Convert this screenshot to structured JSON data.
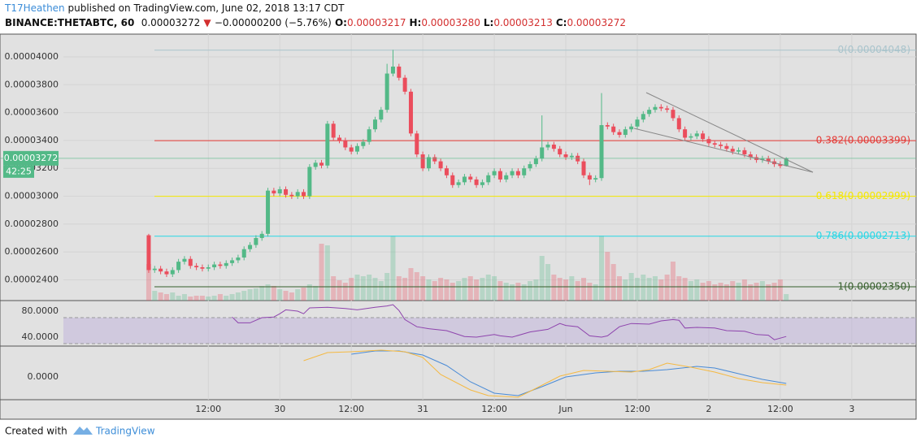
{
  "header": {
    "author": "T17Heathen",
    "published": "published on TradingView.com, June 02, 2018 13:17 CDT",
    "symbol": "BINANCE:THETABTC, 60",
    "last": "0.00003272",
    "arrow": "▼",
    "change": "−0.00000200 (−5.76%)",
    "ohlc": [
      {
        "key": "O:",
        "value": "0.00003217"
      },
      {
        "key": "H:",
        "value": "0.00003280"
      },
      {
        "key": "L:",
        "value": "0.00003213"
      },
      {
        "key": "C:",
        "value": "0.00003272"
      }
    ]
  },
  "footer": {
    "created": "Created with",
    "brand": "TradingView"
  },
  "chart_data": [
    {
      "type": "candlestick",
      "up_color": "#53b987",
      "down_color": "#eb4d5c",
      "grid": true,
      "xlim": [
        -14.32,
        128.8
      ],
      "xticks": [
        {
          "value": 10,
          "label": "12:00"
        },
        {
          "value": 22,
          "label": "30"
        },
        {
          "value": 34,
          "label": "12:00"
        },
        {
          "value": 46,
          "label": "31"
        },
        {
          "value": 58,
          "label": "12:00"
        },
        {
          "value": 70,
          "label": "Jun"
        },
        {
          "value": 82,
          "label": "12:00"
        },
        {
          "value": 94,
          "label": "2"
        },
        {
          "value": 106,
          "label": "12:00"
        },
        {
          "value": 118,
          "label": "3"
        }
      ],
      "ylim": [
        2.251e-05,
        4.163e-05
      ],
      "yticks": [
        {
          "value": 2.4e-05,
          "label": "0.00002400"
        },
        {
          "value": 2.6e-05,
          "label": "0.00002600"
        },
        {
          "value": 2.8e-05,
          "label": "0.00002800"
        },
        {
          "value": 3e-05,
          "label": "0.00003000"
        },
        {
          "value": 3.2e-05,
          "label": "0.00003200"
        },
        {
          "value": 3.4e-05,
          "label": "0.00003400"
        },
        {
          "value": 3.6e-05,
          "label": "0.00003600"
        },
        {
          "value": 3.8e-05,
          "label": "0.00003800"
        },
        {
          "value": 4e-05,
          "label": "0.00004000"
        }
      ],
      "last_price": 3.272e-05,
      "countdown": "42:25",
      "fib_levels": [
        {
          "label": "0(0.00004048)",
          "value": 4.048e-05,
          "color": "#a9c4cc"
        },
        {
          "label": "0.382(0.00003399)",
          "value": 3.399e-05,
          "color": "#e53935"
        },
        {
          "label": "0.618(0.00002999)",
          "value": 2.999e-05,
          "color": "#f5e800"
        },
        {
          "label": "0.786(0.00002713)",
          "value": 2.713e-05,
          "color": "#26d7e6"
        },
        {
          "label": "1(0.00002350)",
          "value": 2.35e-05,
          "color": "#355e2b"
        }
      ],
      "open": [
        2.72e-05,
        2.47e-05,
        2.48e-05,
        2.46e-05,
        2.44e-05,
        2.47e-05,
        2.53e-05,
        2.55e-05,
        2.5e-05,
        2.49e-05,
        2.48e-05,
        2.49e-05,
        2.51e-05,
        2.5e-05,
        2.52e-05,
        2.54e-05,
        2.56e-05,
        2.62e-05,
        2.65e-05,
        2.7e-05,
        2.73e-05,
        3.04e-05,
        3.02e-05,
        3.05e-05,
        3.01e-05,
        3e-05,
        3.03e-05,
        3e-05,
        3.21e-05,
        3.24e-05,
        3.22e-05,
        3.52e-05,
        3.42e-05,
        3.4e-05,
        3.35e-05,
        3.32e-05,
        3.36e-05,
        3.39e-05,
        3.48e-05,
        3.55e-05,
        3.62e-05,
        3.88e-05,
        3.93e-05,
        3.85e-05,
        3.75e-05,
        3.45e-05,
        3.3e-05,
        3.2e-05,
        3.28e-05,
        3.25e-05,
        3.2e-05,
        3.15e-05,
        3.08e-05,
        3.1e-05,
        3.14e-05,
        3.12e-05,
        3.08e-05,
        3.1e-05,
        3.15e-05,
        3.18e-05,
        3.12e-05,
        3.15e-05,
        3.18e-05,
        3.15e-05,
        3.2e-05,
        3.23e-05,
        3.27e-05,
        3.35e-05,
        3.37e-05,
        3.34e-05,
        3.3e-05,
        3.28e-05,
        3.29e-05,
        3.25e-05,
        3.15e-05,
        3.12e-05,
        3.13e-05,
        3.51e-05,
        3.5e-05,
        3.46e-05,
        3.44e-05,
        3.48e-05,
        3.5e-05,
        3.55e-05,
        3.59e-05,
        3.62e-05,
        3.64e-05,
        3.63e-05,
        3.62e-05,
        3.56e-05,
        3.48e-05,
        3.42e-05,
        3.43e-05,
        3.45e-05,
        3.41e-05,
        3.38e-05,
        3.37e-05,
        3.36e-05,
        3.34e-05,
        3.32e-05,
        3.33e-05,
        3.3e-05,
        3.28e-05,
        3.26e-05,
        3.27e-05,
        3.25e-05,
        3.23e-05,
        3.217e-05
      ],
      "high": [
        2.73e-05,
        2.5e-05,
        2.5e-05,
        2.48e-05,
        2.49e-05,
        2.55e-05,
        2.57e-05,
        2.57e-05,
        2.52e-05,
        2.51e-05,
        2.51e-05,
        2.53e-05,
        2.53e-05,
        2.54e-05,
        2.56e-05,
        2.58e-05,
        2.64e-05,
        2.67e-05,
        2.72e-05,
        2.75e-05,
        3.06e-05,
        3.06e-05,
        3.07e-05,
        3.07e-05,
        3.03e-05,
        3.05e-05,
        3.05e-05,
        3.23e-05,
        3.26e-05,
        3.26e-05,
        3.54e-05,
        3.54e-05,
        3.44e-05,
        3.42e-05,
        3.37e-05,
        3.38e-05,
        3.41e-05,
        3.5e-05,
        3.57e-05,
        3.64e-05,
        3.95e-05,
        4.05e-05,
        3.95e-05,
        3.87e-05,
        3.77e-05,
        3.47e-05,
        3.32e-05,
        3.3e-05,
        3.3e-05,
        3.27e-05,
        3.22e-05,
        3.17e-05,
        3.12e-05,
        3.16e-05,
        3.16e-05,
        3.14e-05,
        3.12e-05,
        3.17e-05,
        3.2e-05,
        3.2e-05,
        3.17e-05,
        3.2e-05,
        3.2e-05,
        3.22e-05,
        3.25e-05,
        3.29e-05,
        3.58e-05,
        3.39e-05,
        3.39e-05,
        3.36e-05,
        3.32e-05,
        3.31e-05,
        3.31e-05,
        3.27e-05,
        3.17e-05,
        3.15e-05,
        3.74e-05,
        3.53e-05,
        3.52e-05,
        3.48e-05,
        3.5e-05,
        3.52e-05,
        3.57e-05,
        3.61e-05,
        3.64e-05,
        3.66e-05,
        3.66e-05,
        3.65e-05,
        3.64e-05,
        3.58e-05,
        3.5e-05,
        3.45e-05,
        3.47e-05,
        3.47e-05,
        3.43e-05,
        3.4e-05,
        3.39e-05,
        3.38e-05,
        3.36e-05,
        3.35e-05,
        3.35e-05,
        3.32e-05,
        3.3e-05,
        3.29e-05,
        3.29e-05,
        3.27e-05,
        3.25e-05,
        3.28e-05
      ],
      "low": [
        2.45e-05,
        2.45e-05,
        2.44e-05,
        2.42e-05,
        2.42e-05,
        2.45e-05,
        2.51e-05,
        2.48e-05,
        2.47e-05,
        2.46e-05,
        2.46e-05,
        2.47e-05,
        2.48e-05,
        2.48e-05,
        2.5e-05,
        2.52e-05,
        2.54e-05,
        2.6e-05,
        2.63e-05,
        2.68e-05,
        2.71e-05,
        3e-05,
        3e-05,
        2.99e-05,
        2.98e-05,
        2.98e-05,
        2.98e-05,
        2.98e-05,
        3.19e-05,
        3.2e-05,
        3.2e-05,
        3.4e-05,
        3.38e-05,
        3.33e-05,
        3.3e-05,
        3.3e-05,
        3.34e-05,
        3.37e-05,
        3.46e-05,
        3.53e-05,
        3.6e-05,
        3.86e-05,
        3.83e-05,
        3.73e-05,
        3.43e-05,
        3.28e-05,
        3.18e-05,
        3.18e-05,
        3.23e-05,
        3.18e-05,
        3.13e-05,
        3.06e-05,
        3.06e-05,
        3.08e-05,
        3.1e-05,
        3.06e-05,
        3.06e-05,
        3.08e-05,
        3.13e-05,
        3.1e-05,
        3.1e-05,
        3.13e-05,
        3.13e-05,
        3.13e-05,
        3.18e-05,
        3.21e-05,
        3.25e-05,
        3.33e-05,
        3.32e-05,
        3.28e-05,
        3.26e-05,
        3.26e-05,
        3.23e-05,
        3.13e-05,
        3.08e-05,
        3.1e-05,
        3.11e-05,
        3.48e-05,
        3.44e-05,
        3.42e-05,
        3.42e-05,
        3.46e-05,
        3.48e-05,
        3.53e-05,
        3.57e-05,
        3.6e-05,
        3.61e-05,
        3.6e-05,
        3.54e-05,
        3.46e-05,
        3.4e-05,
        3.4e-05,
        3.41e-05,
        3.39e-05,
        3.36e-05,
        3.35e-05,
        3.34e-05,
        3.32e-05,
        3.3e-05,
        3.3e-05,
        3.28e-05,
        3.26e-05,
        3.24e-05,
        3.24e-05,
        3.23e-05,
        3.21e-05,
        3.2e-05,
        3.213e-05
      ],
      "close": [
        2.47e-05,
        2.48e-05,
        2.46e-05,
        2.44e-05,
        2.47e-05,
        2.53e-05,
        2.55e-05,
        2.5e-05,
        2.49e-05,
        2.48e-05,
        2.49e-05,
        2.51e-05,
        2.5e-05,
        2.52e-05,
        2.54e-05,
        2.56e-05,
        2.62e-05,
        2.65e-05,
        2.7e-05,
        2.73e-05,
        3.04e-05,
        3.02e-05,
        3.05e-05,
        3.01e-05,
        3e-05,
        3.03e-05,
        3e-05,
        3.21e-05,
        3.24e-05,
        3.22e-05,
        3.52e-05,
        3.42e-05,
        3.4e-05,
        3.35e-05,
        3.32e-05,
        3.36e-05,
        3.39e-05,
        3.48e-05,
        3.55e-05,
        3.62e-05,
        3.88e-05,
        3.93e-05,
        3.85e-05,
        3.75e-05,
        3.45e-05,
        3.3e-05,
        3.2e-05,
        3.28e-05,
        3.25e-05,
        3.2e-05,
        3.15e-05,
        3.08e-05,
        3.1e-05,
        3.14e-05,
        3.12e-05,
        3.08e-05,
        3.1e-05,
        3.15e-05,
        3.18e-05,
        3.12e-05,
        3.15e-05,
        3.18e-05,
        3.15e-05,
        3.2e-05,
        3.23e-05,
        3.27e-05,
        3.35e-05,
        3.37e-05,
        3.34e-05,
        3.3e-05,
        3.28e-05,
        3.29e-05,
        3.25e-05,
        3.15e-05,
        3.12e-05,
        3.13e-05,
        3.51e-05,
        3.5e-05,
        3.46e-05,
        3.44e-05,
        3.48e-05,
        3.5e-05,
        3.55e-05,
        3.59e-05,
        3.62e-05,
        3.64e-05,
        3.63e-05,
        3.62e-05,
        3.56e-05,
        3.48e-05,
        3.42e-05,
        3.43e-05,
        3.45e-05,
        3.41e-05,
        3.38e-05,
        3.37e-05,
        3.36e-05,
        3.34e-05,
        3.32e-05,
        3.33e-05,
        3.3e-05,
        3.28e-05,
        3.26e-05,
        3.27e-05,
        3.25e-05,
        3.23e-05,
        3.217e-05,
        3.272e-05
      ],
      "volume": [
        45,
        12,
        10,
        8,
        10,
        6,
        8,
        5,
        6,
        6,
        5,
        6,
        8,
        6,
        8,
        10,
        12,
        14,
        15,
        18,
        20,
        18,
        14,
        12,
        10,
        14,
        16,
        20,
        18,
        70,
        68,
        30,
        25,
        22,
        28,
        32,
        30,
        32,
        28,
        24,
        34,
        80,
        30,
        28,
        40,
        35,
        30,
        26,
        24,
        28,
        26,
        22,
        24,
        28,
        30,
        26,
        28,
        32,
        30,
        24,
        22,
        20,
        22,
        20,
        24,
        26,
        55,
        45,
        32,
        28,
        26,
        30,
        24,
        28,
        22,
        20,
        80,
        60,
        45,
        30,
        26,
        34,
        28,
        32,
        28,
        30,
        26,
        32,
        48,
        30,
        28,
        24,
        26,
        22,
        24,
        20,
        22,
        20,
        24,
        22,
        26,
        20,
        22,
        24,
        20,
        22,
        26,
        8
      ]
    },
    {
      "type": "line",
      "ylim": [
        26.25,
        96.25
      ],
      "yticks": [
        {
          "value": 40,
          "label": "40.0000"
        },
        {
          "value": 80,
          "label": "80.0000"
        }
      ],
      "bands": [
        30,
        70
      ],
      "band_color": "#b39ddb",
      "series": [
        {
          "color": "#8e44ad",
          "x": [
            14,
            15,
            17,
            19,
            21,
            22,
            23,
            25,
            26,
            27,
            30,
            33,
            35,
            38,
            40,
            41,
            42,
            43,
            45,
            47,
            50,
            53,
            55,
            58,
            59,
            61,
            64,
            67,
            69,
            70,
            72,
            74,
            76,
            77,
            79,
            81,
            84,
            86,
            88,
            89,
            90,
            92,
            95,
            97,
            100,
            102,
            104,
            105,
            107
          ],
          "values": [
            71,
            62,
            62,
            70,
            71,
            76,
            82,
            80,
            76,
            85,
            86,
            84,
            82,
            86,
            88,
            90,
            81,
            67,
            56,
            53,
            50,
            41,
            40,
            44,
            42,
            40,
            48,
            52,
            61,
            58,
            56,
            42,
            40,
            42,
            56,
            61,
            60,
            65,
            67,
            66,
            54,
            55,
            54,
            50,
            49,
            44,
            43,
            36,
            41
          ]
        }
      ]
    },
    {
      "type": "line",
      "ylim": [
        -2.8e-07,
        3.8e-07
      ],
      "yticks": [
        {
          "value": 0,
          "label": "0.0000"
        }
      ],
      "series": [
        {
          "color": "#4a8bd6",
          "x": [
            34,
            38,
            42,
            46,
            50,
            54,
            58,
            62,
            66,
            70,
            75,
            79,
            83,
            87,
            92,
            95,
            99,
            103,
            107
          ],
          "values": [
            2.8e-07,
            3.2e-07,
            3.2e-07,
            2.7e-07,
            1.4e-07,
            -6e-08,
            -2e-07,
            -2.3e-07,
            -1.2e-07,
            0,
            5e-08,
            7e-08,
            7e-08,
            9e-08,
            1.3e-07,
            1.1e-07,
            4e-08,
            -3e-08,
            -8e-08
          ]
        },
        {
          "color": "#f5b942",
          "x": [
            26,
            30,
            34,
            39,
            43,
            46,
            49,
            54,
            57,
            62,
            65,
            69,
            73,
            77,
            81,
            84,
            87,
            91,
            95,
            99,
            103,
            107
          ],
          "values": [
            2e-07,
            3e-07,
            3.1e-07,
            3.3e-07,
            3.1e-07,
            2.4e-07,
            3e-08,
            -1.6e-07,
            -2.3e-07,
            -2.5e-07,
            -1.4e-07,
            1e-08,
            8e-08,
            7e-08,
            6e-08,
            9e-08,
            1.7e-07,
            1.2e-07,
            6e-08,
            -2e-08,
            -7e-08,
            -1e-07
          ]
        }
      ]
    }
  ]
}
